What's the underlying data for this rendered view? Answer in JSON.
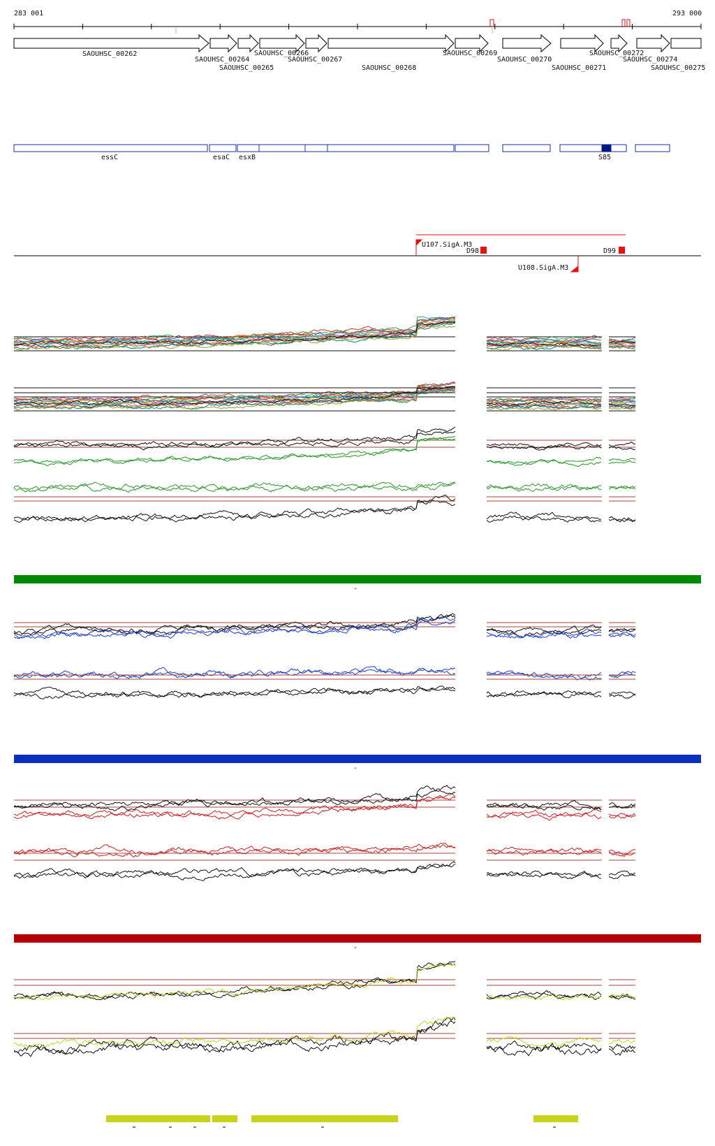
{
  "coord": {
    "start_label": "283 001",
    "end_label": "293 000"
  },
  "genes": [
    {
      "label": "SAOUHSC_00262"
    },
    {
      "label": "SAOUHSC_00264"
    },
    {
      "label": "SAOUHSC_00265"
    },
    {
      "label": "SAOUHSC_00266"
    },
    {
      "label": "SAOUHSC_00267"
    },
    {
      "label": "SAOUHSC_00268"
    },
    {
      "label": "SAOUHSC_00269"
    },
    {
      "label": "SAOUHSC_00270"
    },
    {
      "label": "SAOUHSC_00271"
    },
    {
      "label": "SAOUHSC_00272"
    },
    {
      "label": "SAOUHSC_00274"
    },
    {
      "label": "SAOUHSC_00275"
    }
  ],
  "annotations": [
    {
      "label": "essC"
    },
    {
      "label": "esaC"
    },
    {
      "label": "esxB"
    },
    {
      "label": "S85"
    }
  ],
  "features": [
    {
      "label": "U107.SigA.M3"
    },
    {
      "label": "D98"
    },
    {
      "label": "D99"
    },
    {
      "label": "U108.SigA.M3"
    }
  ],
  "colors": {
    "gene_outline": "#000000",
    "annotation_outline": "#1a2ea8",
    "annotation_fill": "#001a80",
    "feature_red": "#e8120c",
    "green_bar": "#008800",
    "blue_bar": "#0a2fbf",
    "red_bar": "#b30000",
    "yellow_bar": "#c8d41a",
    "green_trace": "#2a9a2a",
    "blue_trace": "#2040d0",
    "red_trace": "#cc2020",
    "yellow_trace": "#c8d41a",
    "black_trace": "#111111",
    "threshold": "#a04a3a"
  },
  "separators": {
    "green": "-",
    "blue": "-",
    "red": "-"
  }
}
